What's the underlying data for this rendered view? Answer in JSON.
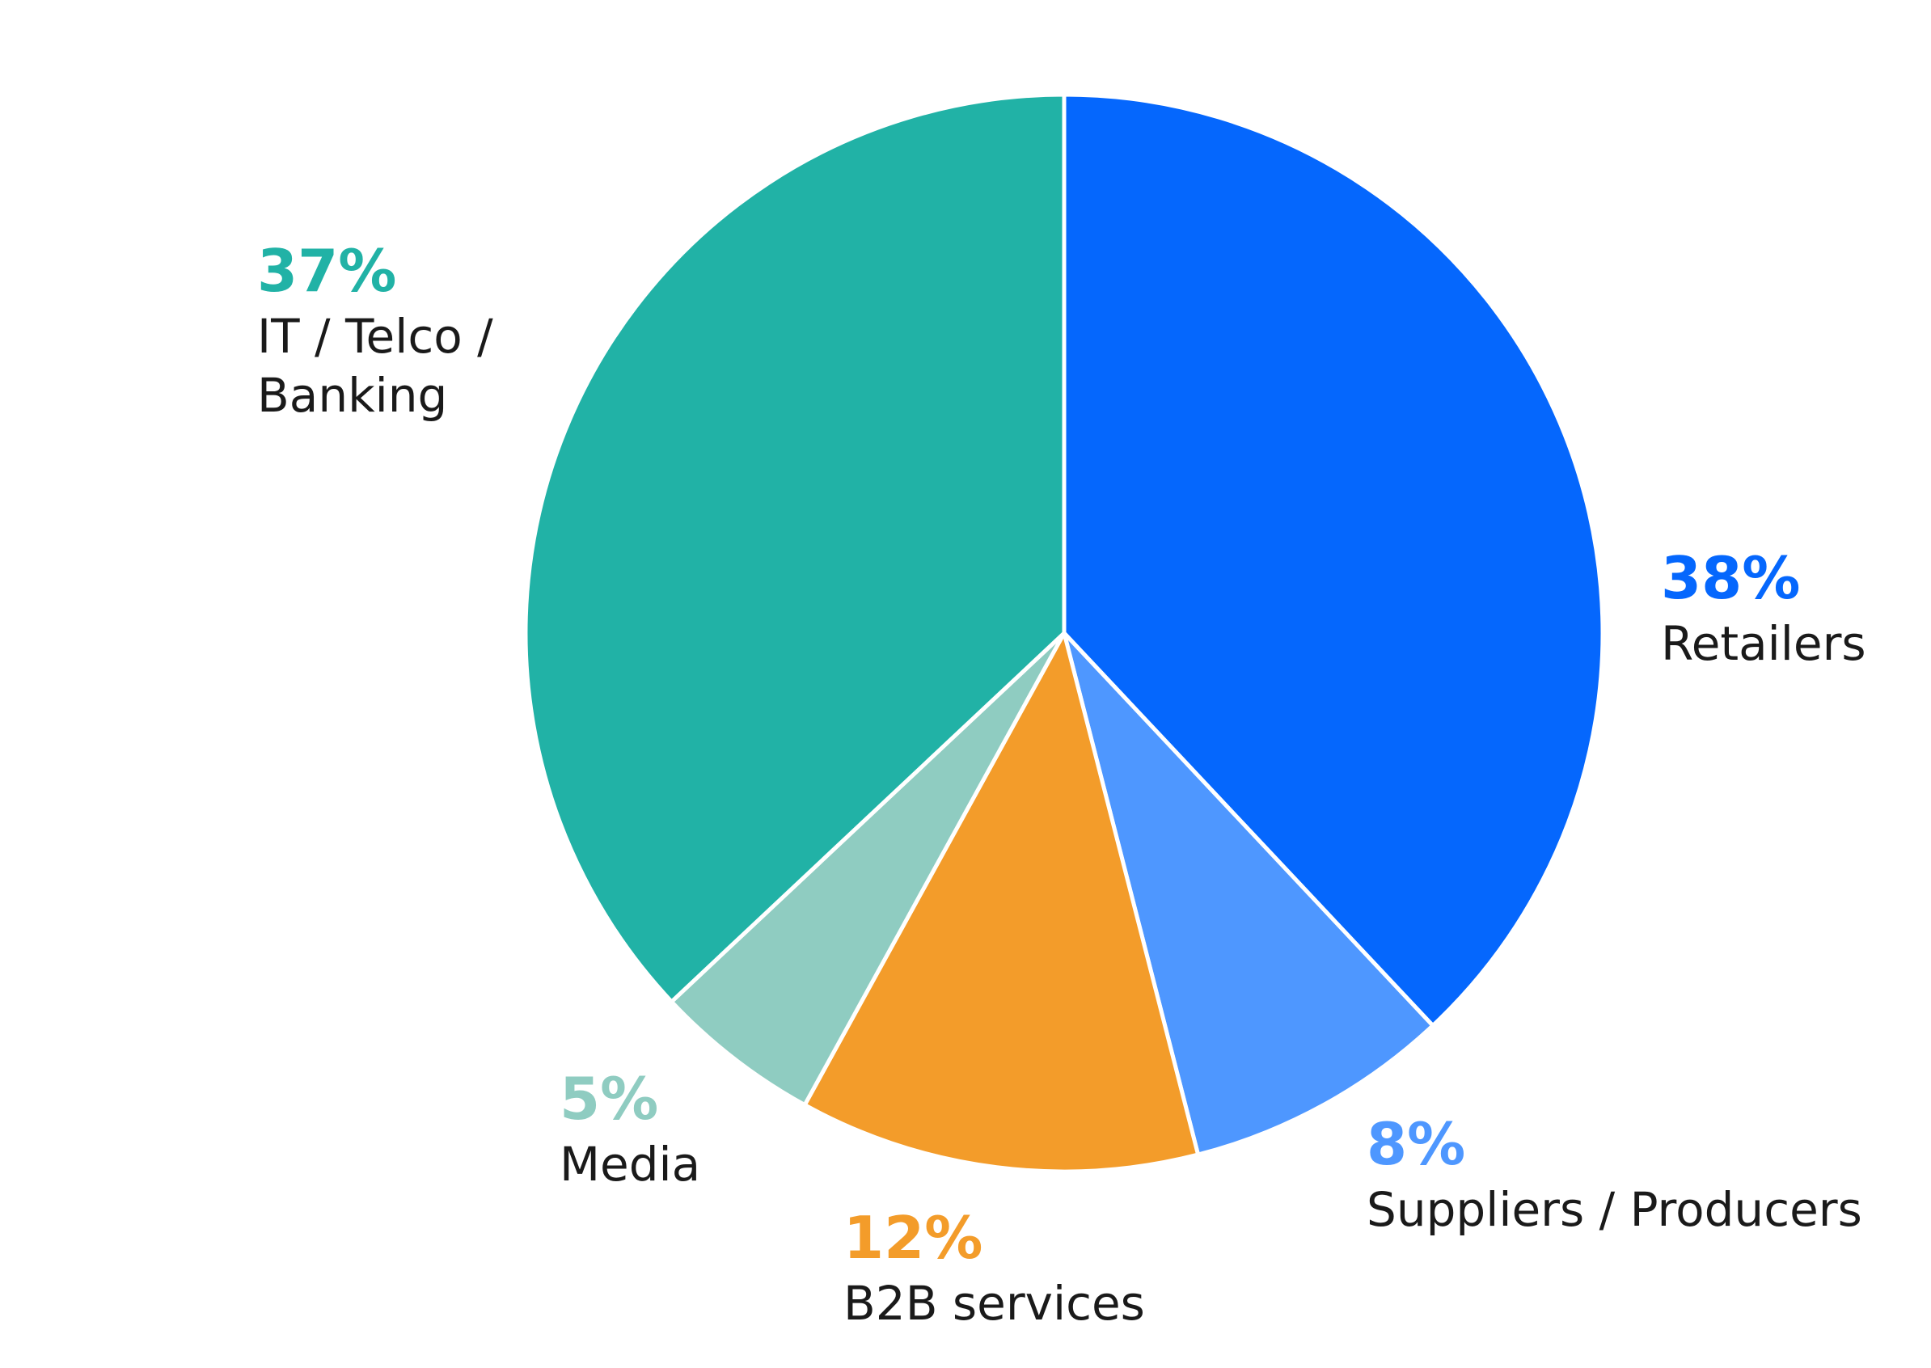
{
  "chart_data": {
    "type": "pie",
    "start_angle_deg": 0,
    "direction": "clockwise",
    "slices": [
      {
        "label": "Retailers",
        "label_lines": [
          "Retailers"
        ],
        "value": 38,
        "percent_label": "38%",
        "color": "#0567FD"
      },
      {
        "label": "Suppliers / Producers",
        "label_lines": [
          "Suppliers / Producers"
        ],
        "value": 8,
        "percent_label": "8%",
        "color": "#4E97FF"
      },
      {
        "label": "B2B services",
        "label_lines": [
          "B2B services"
        ],
        "value": 12,
        "percent_label": "12%",
        "color": "#F39C2A"
      },
      {
        "label": "Media",
        "label_lines": [
          "Media"
        ],
        "value": 5,
        "percent_label": "5%",
        "color": "#8FCCC1"
      },
      {
        "label": "IT / Telco / Banking",
        "label_lines": [
          "IT / Telco /",
          "Banking"
        ],
        "value": 37,
        "percent_label": "37%",
        "color": "#21B2A6"
      }
    ],
    "separator_color": "#ffffff"
  }
}
